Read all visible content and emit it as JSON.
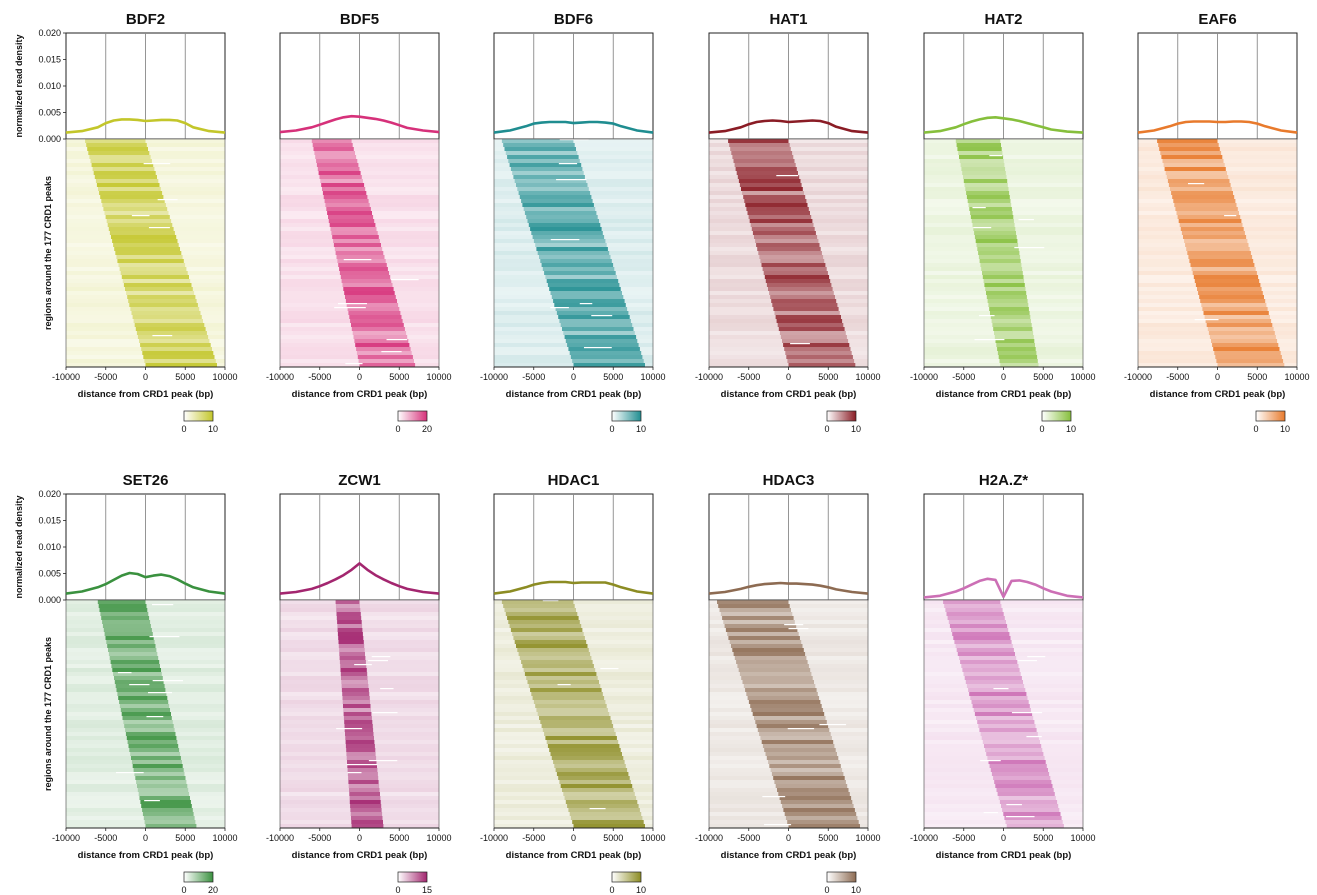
{
  "chart_data": {
    "type": "heatmap",
    "profile_ylabel": "normalized read density",
    "heatmap_ylabel": "regions around the 177 CRD1 peaks",
    "xlabel": "distance from CRD1 peak (bp)",
    "xlim": [
      -10000,
      10000
    ],
    "ylim": [
      0,
      0.02
    ],
    "x_ticks": [
      "-10000",
      "-5000",
      "0",
      "5000",
      "10000"
    ],
    "y_ticks": [
      "0.000",
      "0.005",
      "0.010",
      "0.015",
      "0.020"
    ],
    "profile_x": [
      -10000,
      -8000,
      -6000,
      -5000,
      -4000,
      -3000,
      -2000,
      -1000,
      0,
      1000,
      2000,
      3000,
      4000,
      5000,
      6000,
      8000,
      10000
    ],
    "panels": [
      {
        "title": "BDF2",
        "color": "#c3c62a",
        "cbar_min": "0",
        "cbar_max": "10",
        "profile": [
          0.0012,
          0.0015,
          0.0022,
          0.003,
          0.0035,
          0.0037,
          0.0037,
          0.0036,
          0.0034,
          0.0035,
          0.0036,
          0.0036,
          0.0035,
          0.003,
          0.0022,
          0.0015,
          0.0012
        ]
      },
      {
        "title": "BDF5",
        "color": "#d6317a",
        "cbar_min": "0",
        "cbar_max": "20",
        "profile": [
          0.0013,
          0.0016,
          0.0022,
          0.0027,
          0.0032,
          0.0037,
          0.0041,
          0.0043,
          0.0042,
          0.004,
          0.0038,
          0.0035,
          0.0031,
          0.0026,
          0.0021,
          0.0016,
          0.0013
        ]
      },
      {
        "title": "BDF6",
        "color": "#1f8d90",
        "cbar_min": "0",
        "cbar_max": "10",
        "profile": [
          0.0012,
          0.0016,
          0.0024,
          0.0029,
          0.0031,
          0.0032,
          0.0032,
          0.0032,
          0.003,
          0.0031,
          0.0032,
          0.0032,
          0.0031,
          0.0029,
          0.0024,
          0.0016,
          0.0012
        ]
      },
      {
        "title": "HAT1",
        "color": "#8a1c25",
        "cbar_min": "0",
        "cbar_max": "10",
        "profile": [
          0.0012,
          0.0015,
          0.0022,
          0.0028,
          0.0032,
          0.0034,
          0.0035,
          0.0034,
          0.0032,
          0.0033,
          0.0034,
          0.0035,
          0.0034,
          0.003,
          0.0023,
          0.0015,
          0.0012
        ]
      },
      {
        "title": "HAT2",
        "color": "#86bf3c",
        "cbar_min": "0",
        "cbar_max": "10",
        "profile": [
          0.0012,
          0.0015,
          0.0022,
          0.0028,
          0.0033,
          0.0037,
          0.004,
          0.0041,
          0.0039,
          0.0037,
          0.0034,
          0.003,
          0.0026,
          0.0022,
          0.0018,
          0.0014,
          0.0012
        ]
      },
      {
        "title": "EAF6",
        "color": "#e87a2c",
        "cbar_min": "0",
        "cbar_max": "10",
        "profile": [
          0.0012,
          0.0016,
          0.0024,
          0.0029,
          0.0032,
          0.0033,
          0.0033,
          0.0033,
          0.0032,
          0.0032,
          0.0033,
          0.0033,
          0.0032,
          0.0029,
          0.0024,
          0.0016,
          0.0012
        ]
      },
      {
        "title": "SET26",
        "color": "#3a913f",
        "cbar_min": "0",
        "cbar_max": "20",
        "profile": [
          0.0012,
          0.0016,
          0.0024,
          0.003,
          0.0038,
          0.0046,
          0.0051,
          0.0049,
          0.0043,
          0.0046,
          0.0048,
          0.0045,
          0.0039,
          0.0031,
          0.0024,
          0.0016,
          0.0012
        ]
      },
      {
        "title": "ZCW1",
        "color": "#a3266f",
        "cbar_min": "0",
        "cbar_max": "15",
        "profile": [
          0.0012,
          0.0015,
          0.0021,
          0.0026,
          0.0032,
          0.0039,
          0.0047,
          0.0057,
          0.0069,
          0.0057,
          0.0047,
          0.0039,
          0.0032,
          0.0026,
          0.0021,
          0.0015,
          0.0012
        ]
      },
      {
        "title": "HDAC1",
        "color": "#8c8c23",
        "cbar_min": "0",
        "cbar_max": "10",
        "profile": [
          0.0012,
          0.0016,
          0.0024,
          0.0029,
          0.0032,
          0.0034,
          0.0034,
          0.0034,
          0.0032,
          0.0033,
          0.0033,
          0.0033,
          0.0033,
          0.0029,
          0.0024,
          0.0016,
          0.0012
        ]
      },
      {
        "title": "HDAC3",
        "color": "#8d6b52",
        "cbar_min": "0",
        "cbar_max": "10",
        "profile": [
          0.0012,
          0.0015,
          0.0021,
          0.0025,
          0.0028,
          0.003,
          0.0031,
          0.0032,
          0.0031,
          0.0031,
          0.003,
          0.0029,
          0.0027,
          0.0024,
          0.002,
          0.0015,
          0.0012
        ]
      },
      {
        "title": "H2A.Z*",
        "color": "#cc6fb5",
        "cbar_min": "",
        "cbar_max": "",
        "profile": [
          0.0005,
          0.0008,
          0.0016,
          0.0022,
          0.0029,
          0.0036,
          0.004,
          0.0038,
          0.0006,
          0.0036,
          0.0037,
          0.0034,
          0.0029,
          0.0022,
          0.0016,
          0.0008,
          0.0005
        ]
      }
    ]
  }
}
